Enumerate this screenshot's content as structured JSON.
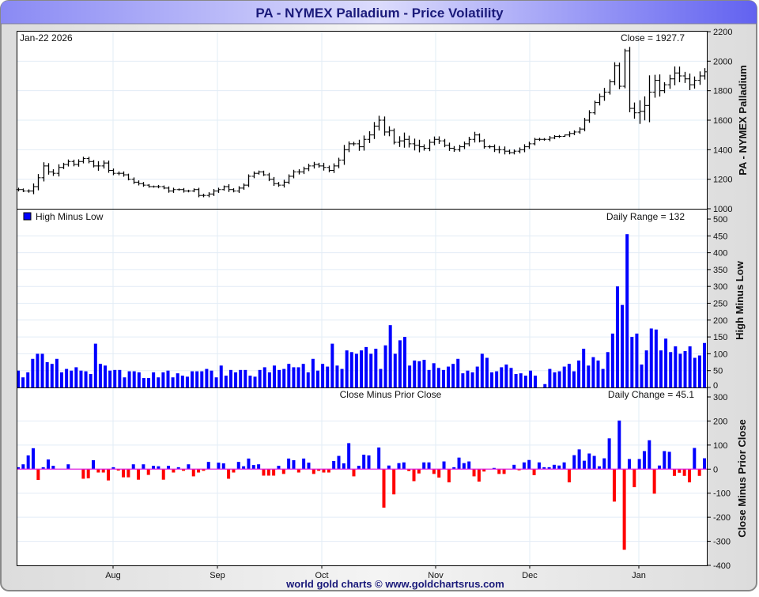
{
  "title": "PA  -  NYMEX Palladium - Price Volatility",
  "footer": "world gold charts © www.goldchartsrus.com",
  "colors": {
    "up": "#0000ff",
    "down": "#ff0000",
    "zero_line": "#e020e0",
    "price": "#000000",
    "title_text": "#1a1a7a"
  },
  "chart_data": [
    {
      "type": "ohlc",
      "date_label": "Jan-22  2026",
      "readout": "Close = 1927.7",
      "ylabel": "PA  -  NYMEX Palladium",
      "ylim": [
        1000,
        2200
      ],
      "yticks": [
        "1000",
        "1200",
        "1400",
        "1600",
        "1800",
        "2000",
        "2200"
      ],
      "xticks": [
        "Aug",
        "Sep",
        "Oct",
        "Nov",
        "Dec",
        "Jan"
      ],
      "close": [
        1130,
        1120,
        1120,
        1150,
        1210,
        1290,
        1250,
        1240,
        1280,
        1300,
        1320,
        1300,
        1320,
        1340,
        1320,
        1290,
        1290,
        1310,
        1260,
        1240,
        1240,
        1230,
        1200,
        1180,
        1170,
        1160,
        1150,
        1150,
        1150,
        1140,
        1120,
        1130,
        1130,
        1120,
        1120,
        1130,
        1090,
        1090,
        1100,
        1120,
        1130,
        1150,
        1130,
        1120,
        1140,
        1160,
        1220,
        1240,
        1250,
        1230,
        1200,
        1170,
        1160,
        1180,
        1220,
        1250,
        1250,
        1270,
        1290,
        1300,
        1290,
        1280,
        1260,
        1290,
        1330,
        1400,
        1440,
        1440,
        1420,
        1470,
        1500,
        1560,
        1600,
        1520,
        1530,
        1450,
        1460,
        1470,
        1440,
        1430,
        1420,
        1410,
        1450,
        1470,
        1460,
        1430,
        1410,
        1400,
        1420,
        1440,
        1470,
        1500,
        1460,
        1420,
        1420,
        1400,
        1400,
        1390,
        1380,
        1390,
        1400,
        1420,
        1440,
        1470,
        1470,
        1470,
        1480,
        1490,
        1490,
        1500,
        1510,
        1520,
        1540,
        1600,
        1650,
        1720,
        1760,
        1790,
        1860,
        1970,
        1830,
        2070,
        1680,
        1650,
        1660,
        1700,
        1790,
        1870,
        1800,
        1840,
        1880,
        1920,
        1900,
        1880,
        1840,
        1870,
        1900,
        1927.7
      ]
    },
    {
      "type": "bar",
      "legend": "High Minus Low",
      "readout": "Daily Range = 132",
      "ylabel": "High Minus Low",
      "ylim": [
        0,
        500
      ],
      "yticks": [
        "0",
        "50",
        "100",
        "150",
        "200",
        "250",
        "300",
        "350",
        "400",
        "450",
        "500"
      ],
      "top_label": "1000",
      "values": [
        50,
        30,
        45,
        85,
        100,
        100,
        75,
        70,
        85,
        45,
        55,
        50,
        60,
        50,
        48,
        40,
        130,
        70,
        65,
        50,
        52,
        52,
        30,
        48,
        48,
        45,
        28,
        28,
        45,
        30,
        45,
        50,
        30,
        42,
        35,
        32,
        48,
        48,
        48,
        55,
        50,
        30,
        65,
        35,
        52,
        45,
        52,
        52,
        35,
        32,
        52,
        60,
        45,
        65,
        52,
        55,
        70,
        60,
        60,
        70,
        45,
        85,
        50,
        70,
        62,
        130,
        65,
        55,
        110,
        105,
        100,
        110,
        120,
        100,
        115,
        55,
        125,
        185,
        100,
        140,
        150,
        65,
        80,
        78,
        82,
        52,
        72,
        58,
        52,
        62,
        70,
        85,
        42,
        50,
        45,
        62,
        100,
        88,
        45,
        48,
        60,
        68,
        58,
        40,
        42,
        35,
        50,
        35,
        0,
        10,
        55,
        45,
        48,
        62,
        70,
        48,
        80,
        115,
        65,
        90,
        80,
        55,
        105,
        160,
        300,
        245,
        455,
        150,
        160,
        68,
        110,
        175,
        172,
        110,
        145,
        105,
        122,
        100,
        108,
        122,
        88,
        95,
        132
      ]
    },
    {
      "type": "bar",
      "title": "Close Minus Prior Close",
      "readout": "Daily Change = 45.1",
      "ylabel": "Close Minus Prior Close",
      "ylim": [
        -400,
        300
      ],
      "yticks": [
        "-400",
        "-300",
        "-200",
        "-100",
        "0",
        "100",
        "200",
        "300"
      ],
      "values": [
        8,
        20,
        57,
        87,
        -45,
        8,
        40,
        14,
        0,
        0,
        20,
        0,
        0,
        -40,
        -38,
        37,
        -14,
        -14,
        -47,
        8,
        -6,
        -34,
        -34,
        20,
        -44,
        20,
        -24,
        14,
        12,
        -44,
        14,
        -14,
        8,
        -7,
        20,
        -30,
        -14,
        -7,
        30,
        0,
        27,
        24,
        -40,
        -14,
        30,
        12,
        44,
        17,
        20,
        -27,
        -27,
        -27,
        14,
        -20,
        44,
        37,
        -14,
        44,
        27,
        -20,
        -7,
        -14,
        -14,
        34,
        55,
        24,
        108,
        -30,
        14,
        60,
        57,
        0,
        90,
        -160,
        15,
        -105,
        25,
        28,
        -8,
        -50,
        -18,
        28,
        28,
        -20,
        -35,
        32,
        -55,
        8,
        48,
        25,
        32,
        -30,
        -52,
        -10,
        0,
        5,
        -20,
        -20,
        0,
        18,
        -5,
        28,
        38,
        -25,
        28,
        8,
        8,
        18,
        15,
        28,
        -55,
        58,
        82,
        35,
        65,
        55,
        12,
        45,
        128,
        -135,
        202,
        -335,
        42,
        -75,
        42,
        75,
        120,
        -102,
        15,
        75,
        72,
        -28,
        -15,
        -28,
        -55,
        88,
        -28,
        45.1
      ]
    }
  ]
}
